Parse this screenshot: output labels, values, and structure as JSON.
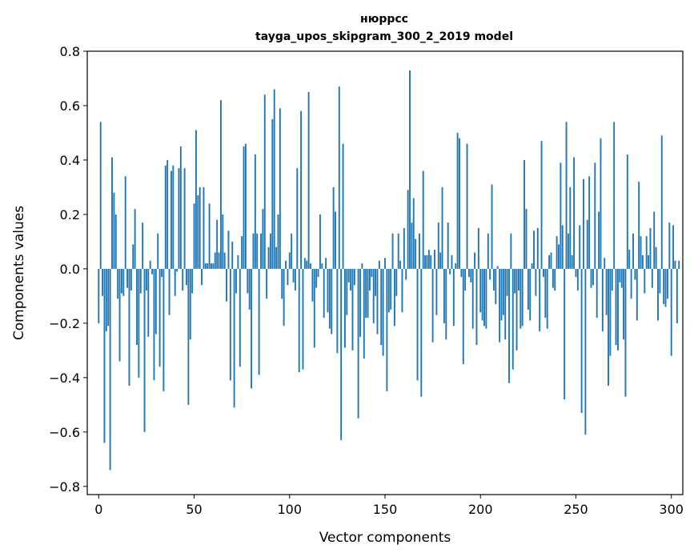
{
  "chart_data": {
    "type": "bar",
    "title_line1": "нюррсс",
    "title_line2": "tayga_upos_skipgram_300_2_2019 model",
    "xlabel": "Vector components",
    "ylabel": "Components values",
    "xlim": [
      -6,
      306
    ],
    "ylim": [
      -0.83,
      0.8
    ],
    "xticks": [
      0,
      50,
      100,
      150,
      200,
      250,
      300
    ],
    "yticks": [
      -0.8,
      -0.6,
      -0.4,
      -0.2,
      0.0,
      0.2,
      0.4,
      0.6,
      0.8
    ],
    "ytick_labels": [
      "−0.8",
      "−0.6",
      "−0.4",
      "−0.2",
      "0.0",
      "0.2",
      "0.4",
      "0.6",
      "0.8"
    ],
    "bar_color": "#1f77b4",
    "values": [
      -0.2,
      0.54,
      -0.1,
      -0.64,
      -0.23,
      -0.21,
      -0.74,
      0.41,
      0.28,
      0.2,
      -0.11,
      -0.34,
      -0.09,
      -0.1,
      0.34,
      -0.07,
      -0.43,
      -0.08,
      0.09,
      0.22,
      -0.28,
      -0.4,
      -0.09,
      0.17,
      -0.6,
      -0.08,
      -0.25,
      0.03,
      -0.02,
      -0.41,
      -0.24,
      0.13,
      -0.36,
      -0.03,
      -0.45,
      0.38,
      0.4,
      -0.17,
      0.36,
      0.38,
      -0.1,
      -0.01,
      0.37,
      0.45,
      -0.08,
      0.37,
      -0.06,
      -0.5,
      -0.26,
      -0.09,
      0.24,
      0.51,
      0.27,
      0.3,
      -0.06,
      0.3,
      0.02,
      0.02,
      0.24,
      0.02,
      0.02,
      0.06,
      0.18,
      0.06,
      0.62,
      0.2,
      0.06,
      -0.12,
      0.14,
      -0.41,
      0.1,
      -0.51,
      -0.09,
      0.05,
      -0.36,
      0.12,
      0.45,
      0.46,
      -0.09,
      -0.15,
      -0.44,
      0.13,
      0.42,
      0.13,
      -0.39,
      0.13,
      0.22,
      0.64,
      -0.11,
      0.08,
      0.13,
      0.55,
      0.66,
      0.08,
      0.2,
      0.59,
      -0.11,
      -0.21,
      0.03,
      -0.06,
      0.06,
      0.13,
      -0.05,
      -0.08,
      0.37,
      -0.38,
      0.58,
      -0.37,
      0.04,
      0.03,
      0.65,
      0.02,
      -0.12,
      -0.29,
      -0.07,
      -0.03,
      0.2,
      0.02,
      -0.18,
      0.04,
      -0.16,
      -0.22,
      -0.24,
      0.3,
      0.21,
      -0.31,
      0.67,
      -0.63,
      0.46,
      -0.29,
      -0.17,
      -0.05,
      -0.08,
      -0.3,
      -0.06,
      0.0,
      -0.55,
      -0.25,
      0.02,
      -0.33,
      -0.18,
      -0.18,
      -0.08,
      -0.03,
      -0.2,
      -0.1,
      -0.24,
      0.03,
      -0.28,
      -0.32,
      0.04,
      -0.45,
      -0.16,
      -0.15,
      0.13,
      -0.21,
      -0.1,
      0.13,
      0.03,
      -0.16,
      0.15,
      -0.04,
      0.29,
      0.73,
      0.17,
      0.26,
      0.11,
      -0.41,
      0.13,
      -0.47,
      0.36,
      0.05,
      0.05,
      0.07,
      0.05,
      -0.27,
      0.07,
      -0.17,
      0.17,
      0.06,
      0.3,
      -0.2,
      -0.26,
      0.17,
      -0.02,
      0.05,
      -0.21,
      0.02,
      0.5,
      0.48,
      -0.03,
      -0.35,
      -0.08,
      0.46,
      -0.03,
      -0.05,
      -0.22,
      0.06,
      -0.28,
      0.15,
      -0.16,
      -0.19,
      -0.21,
      -0.22,
      0.13,
      -0.04,
      0.31,
      -0.08,
      -0.13,
      0.01,
      -0.27,
      -0.19,
      -0.17,
      -0.26,
      -0.1,
      -0.42,
      0.13,
      -0.37,
      -0.09,
      -0.3,
      -0.08,
      -0.22,
      -0.21,
      0.4,
      0.22,
      -0.15,
      -0.19,
      0.02,
      0.14,
      -0.1,
      0.15,
      -0.23,
      0.47,
      -0.03,
      -0.18,
      -0.22,
      0.05,
      0.06,
      -0.07,
      -0.08,
      0.12,
      0.09,
      0.39,
      0.16,
      -0.48,
      0.54,
      0.13,
      0.3,
      0.05,
      0.41,
      -0.03,
      -0.08,
      0.16,
      -0.53,
      0.33,
      -0.61,
      0.18,
      0.34,
      -0.07,
      -0.06,
      0.39,
      -0.18,
      0.21,
      0.48,
      -0.23,
      0.04,
      -0.17,
      -0.43,
      -0.32,
      -0.08,
      0.54,
      -0.28,
      -0.3,
      -0.05,
      -0.07,
      -0.26,
      -0.47,
      0.42,
      0.07,
      -0.11,
      0.13,
      -0.04,
      -0.19,
      0.32,
      0.12,
      0.05,
      -0.09,
      0.12,
      0.05,
      0.15,
      -0.07,
      0.21,
      0.08,
      -0.19,
      -0.09,
      0.49,
      -0.13,
      -0.14,
      -0.11,
      0.17,
      -0.32,
      0.16,
      0.03,
      -0.2,
      0.03
    ]
  }
}
